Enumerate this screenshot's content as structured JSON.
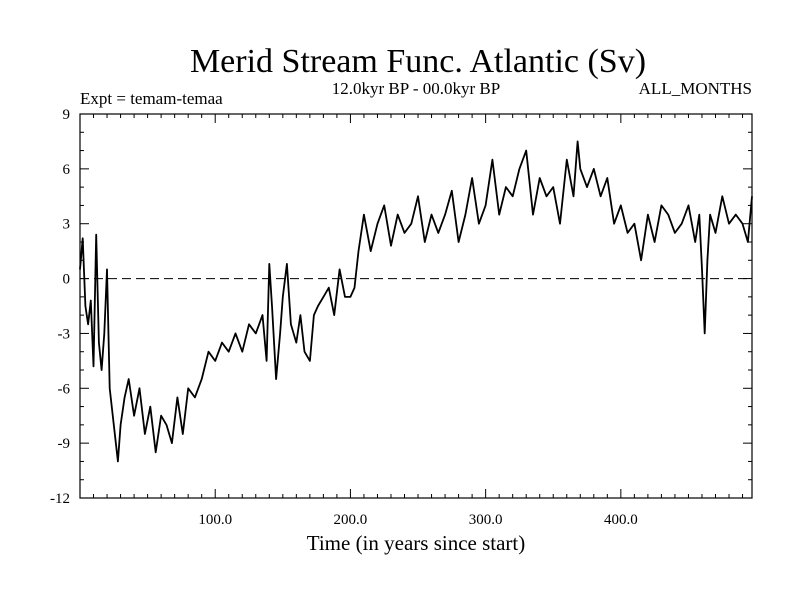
{
  "chart_data": {
    "type": "line",
    "title": "Merid Stream Func. Atlantic (Sv)",
    "subtitle": "12.0kyr BP - 00.0kyr BP",
    "left_label": "Expt = temam-temaa",
    "right_label": "ALL_MONTHS",
    "xlabel": "Time (in years since start)",
    "ylabel": "",
    "xlim": [
      0,
      497
    ],
    "ylim": [
      -12,
      9
    ],
    "xticks": [
      100,
      200,
      300,
      400
    ],
    "xtick_labels": [
      "100.0",
      "200.0",
      "300.0",
      "400.0"
    ],
    "yticks": [
      9,
      6,
      3,
      0,
      -3,
      -6,
      -9,
      -12
    ],
    "ytick_labels": [
      "9",
      "6",
      "3",
      "0",
      "-3",
      "-6",
      "-9",
      "-12"
    ],
    "reference_line": {
      "y": 0,
      "style": "dashed"
    },
    "series": [
      {
        "name": "Merid Stream Func. Atlantic",
        "x": [
          0,
          2,
          4,
          6,
          8,
          10,
          12,
          14,
          16,
          18,
          20,
          22,
          25,
          28,
          30,
          33,
          36,
          40,
          44,
          48,
          52,
          56,
          60,
          64,
          68,
          72,
          76,
          80,
          85,
          90,
          95,
          100,
          105,
          110,
          115,
          120,
          125,
          130,
          135,
          138,
          140,
          142,
          145,
          148,
          150,
          153,
          156,
          160,
          163,
          166,
          170,
          173,
          176,
          180,
          184,
          188,
          192,
          196,
          200,
          203,
          206,
          210,
          215,
          220,
          225,
          230,
          235,
          240,
          245,
          250,
          255,
          260,
          265,
          270,
          275,
          280,
          285,
          290,
          295,
          300,
          305,
          310,
          315,
          320,
          325,
          330,
          335,
          340,
          345,
          350,
          355,
          360,
          365,
          368,
          370,
          375,
          380,
          385,
          390,
          395,
          400,
          405,
          410,
          415,
          420,
          425,
          430,
          435,
          440,
          445,
          450,
          455,
          458,
          460,
          462,
          464,
          466,
          470,
          475,
          480,
          485,
          490,
          494,
          497
        ],
        "values": [
          0.5,
          2.2,
          -1.5,
          -2.5,
          -1.2,
          -4.8,
          2.4,
          -3.5,
          -5.0,
          -3.0,
          0.5,
          -6.0,
          -8.0,
          -10.0,
          -8.0,
          -6.5,
          -5.5,
          -7.5,
          -6.0,
          -8.5,
          -7.0,
          -9.5,
          -7.5,
          -8.0,
          -9.0,
          -6.5,
          -8.5,
          -6.0,
          -6.5,
          -5.5,
          -4.0,
          -4.5,
          -3.5,
          -4.0,
          -3.0,
          -4.0,
          -2.5,
          -3.0,
          -2.0,
          -4.5,
          0.8,
          -1.5,
          -5.5,
          -3.0,
          -1.0,
          0.8,
          -2.5,
          -3.5,
          -2.0,
          -4.0,
          -4.5,
          -2.0,
          -1.5,
          -1.0,
          -0.5,
          -2.0,
          0.5,
          -1.0,
          -1.0,
          -0.5,
          1.5,
          3.5,
          1.5,
          3.0,
          4.0,
          1.8,
          3.5,
          2.5,
          3.0,
          4.5,
          2.0,
          3.5,
          2.5,
          3.5,
          4.8,
          2.0,
          3.5,
          5.5,
          3.0,
          4.0,
          6.5,
          3.5,
          5.0,
          4.5,
          6.0,
          7.0,
          3.5,
          5.5,
          4.5,
          5.0,
          3.0,
          6.5,
          4.5,
          7.5,
          6.0,
          5.0,
          6.0,
          4.5,
          5.5,
          3.0,
          4.0,
          2.5,
          3.0,
          1.0,
          3.5,
          2.0,
          4.0,
          3.5,
          2.5,
          3.0,
          4.0,
          2.0,
          3.5,
          0.5,
          -3.0,
          1.0,
          3.5,
          2.5,
          4.5,
          3.0,
          3.5,
          3.0,
          2.0,
          4.5
        ]
      }
    ]
  }
}
